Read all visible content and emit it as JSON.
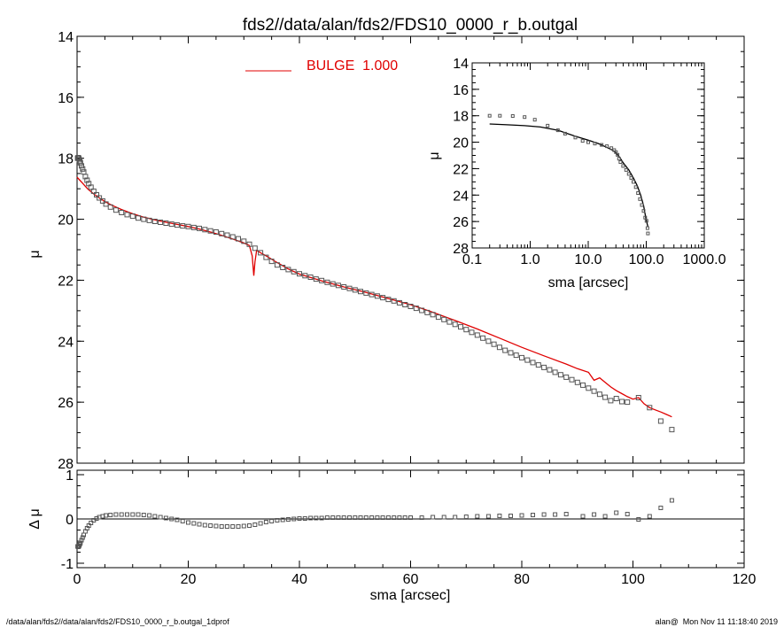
{
  "title": "fds2//data/alan/fds2/FDS10_0000_r_b.outgal",
  "footer_left": "/data/alan/fds2//data/alan/fds2/FDS10_0000_r_b.outgal_1dprof",
  "footer_right": "alan@  Mon Nov 11 11:18:40 2019",
  "colors": {
    "model": "#e00000",
    "data": "#555555",
    "axis": "#000000"
  },
  "chart_data": [
    {
      "id": "main",
      "type": "scatter",
      "ylabel": "μ",
      "xlim": [
        0,
        120
      ],
      "ylim": [
        28,
        14
      ],
      "y_inverted": true,
      "xticks": [
        0,
        20,
        40,
        60,
        80,
        100,
        120
      ],
      "yticks": [
        14,
        16,
        18,
        20,
        22,
        24,
        26,
        28
      ],
      "legend": {
        "label": "BULGE  1.000",
        "placement": "top-center"
      },
      "series": [
        {
          "name": "BULGE  1.000",
          "kind": "line",
          "x": [
            0,
            0.5,
            1,
            1.5,
            2,
            3,
            4,
            5,
            6,
            8,
            10,
            12,
            14,
            16,
            18,
            20,
            22,
            24,
            26,
            28,
            30,
            31,
            31.5,
            31.8,
            32,
            32.3,
            33,
            34,
            36,
            38,
            40,
            44,
            48,
            52,
            56,
            60,
            64,
            68,
            72,
            76,
            80,
            84,
            88,
            90,
            92,
            93,
            94,
            95,
            96,
            97,
            98,
            99,
            100,
            101,
            102,
            103,
            104,
            105,
            106,
            107
          ],
          "y": [
            18.62,
            18.72,
            18.82,
            18.92,
            19.02,
            19.17,
            19.3,
            19.42,
            19.52,
            19.68,
            19.82,
            19.93,
            20.02,
            20.1,
            20.17,
            20.24,
            20.32,
            20.42,
            20.53,
            20.65,
            20.78,
            20.86,
            21.2,
            21.85,
            21.4,
            21.02,
            21.1,
            21.2,
            21.42,
            21.63,
            21.8,
            22.02,
            22.22,
            22.4,
            22.6,
            22.8,
            23.05,
            23.32,
            23.6,
            23.9,
            24.2,
            24.48,
            24.75,
            24.9,
            25.02,
            25.28,
            25.2,
            25.35,
            25.5,
            25.62,
            25.72,
            25.82,
            25.9,
            25.85,
            26.05,
            26.18,
            26.25,
            26.32,
            26.4,
            26.48
          ]
        },
        {
          "name": "",
          "kind": "markers",
          "x": [
            0.1,
            0.2,
            0.3,
            0.4,
            0.5,
            0.6,
            0.8,
            1,
            1.2,
            1.5,
            1.8,
            2.1,
            2.5,
            3,
            3.5,
            4,
            4.6,
            5.2,
            6,
            7,
            8,
            9,
            10,
            11,
            12,
            13,
            14,
            15,
            16,
            17,
            18,
            19,
            20,
            21,
            22,
            23,
            24,
            25,
            26,
            27,
            28,
            29,
            30,
            31,
            32,
            33,
            34,
            35,
            36,
            37,
            38,
            39,
            40,
            41,
            42,
            43,
            44,
            45,
            46,
            47,
            48,
            49,
            50,
            51,
            52,
            53,
            54,
            55,
            56,
            57,
            58,
            59,
            60,
            61,
            62,
            63,
            64,
            65,
            66,
            67,
            68,
            69,
            70,
            71,
            72,
            73,
            74,
            75,
            76,
            77,
            78,
            79,
            80,
            81,
            82,
            83,
            84,
            85,
            86,
            87,
            88,
            89,
            90,
            91,
            92,
            93,
            94,
            95,
            96,
            97,
            98,
            99,
            101,
            103,
            105,
            107
          ],
          "y": [
            18.0,
            17.98,
            18.0,
            18.05,
            18.1,
            18.15,
            18.25,
            18.35,
            18.45,
            18.6,
            18.72,
            18.83,
            18.95,
            19.08,
            19.2,
            19.3,
            19.4,
            19.5,
            19.6,
            19.7,
            19.78,
            19.85,
            19.9,
            19.96,
            20.0,
            20.04,
            20.07,
            20.1,
            20.13,
            20.16,
            20.19,
            20.22,
            20.24,
            20.27,
            20.3,
            20.34,
            20.38,
            20.42,
            20.47,
            20.52,
            20.58,
            20.64,
            20.72,
            20.82,
            20.95,
            21.1,
            21.25,
            21.38,
            21.5,
            21.58,
            21.65,
            21.72,
            21.79,
            21.85,
            21.9,
            21.96,
            22.01,
            22.07,
            22.12,
            22.17,
            22.22,
            22.27,
            22.32,
            22.37,
            22.42,
            22.47,
            22.52,
            22.57,
            22.63,
            22.68,
            22.74,
            22.8,
            22.86,
            22.92,
            22.99,
            23.06,
            23.13,
            23.21,
            23.29,
            23.37,
            23.45,
            23.53,
            23.62,
            23.71,
            23.8,
            23.9,
            24.0,
            24.1,
            24.2,
            24.3,
            24.38,
            24.46,
            24.54,
            24.62,
            24.7,
            24.78,
            24.86,
            24.94,
            25.02,
            25.1,
            25.18,
            25.26,
            25.35,
            25.44,
            25.54,
            25.64,
            25.74,
            25.84,
            25.95,
            25.88,
            25.98,
            26.0,
            25.85,
            26.18,
            26.62,
            26.9
          ]
        }
      ]
    },
    {
      "id": "inset",
      "type": "scatter",
      "xlabel": "sma [arcsec]",
      "ylabel": "μ",
      "xscale": "log",
      "xlim": [
        0.1,
        1000
      ],
      "ylim": [
        28,
        14
      ],
      "y_inverted": true,
      "xticks": [
        0.1,
        1,
        10,
        100,
        1000
      ],
      "xtick_labels": [
        "0.1",
        "1.0",
        "10.0",
        "100.0",
        "1000.0"
      ],
      "yticks": [
        14,
        16,
        18,
        20,
        22,
        24,
        26,
        28
      ],
      "series": [
        {
          "name": "",
          "kind": "line",
          "x": [
            0.2,
            0.4,
            0.8,
            1.5,
            3,
            6,
            10,
            15,
            20,
            25,
            30,
            35,
            40,
            50,
            60,
            70,
            80,
            90,
            100,
            107
          ],
          "y": [
            18.62,
            18.68,
            18.75,
            18.85,
            19.1,
            19.55,
            19.85,
            20.1,
            20.35,
            20.55,
            20.8,
            21.15,
            21.55,
            22.1,
            22.7,
            23.3,
            24.0,
            24.8,
            25.9,
            26.4
          ]
        },
        {
          "name": "",
          "kind": "markers",
          "x": [
            0.2,
            0.3,
            0.5,
            0.8,
            1.2,
            2,
            3,
            4,
            6,
            8,
            10,
            13,
            17,
            21,
            25,
            28,
            30,
            32,
            34,
            36,
            40,
            45,
            50,
            55,
            60,
            66,
            72,
            78,
            84,
            90,
            96,
            101,
            105,
            107
          ],
          "y": [
            18.0,
            18.0,
            18.02,
            18.1,
            18.3,
            18.75,
            19.1,
            19.35,
            19.65,
            19.9,
            20.0,
            20.1,
            20.2,
            20.3,
            20.45,
            20.6,
            20.75,
            20.95,
            21.25,
            21.5,
            21.8,
            22.1,
            22.4,
            22.7,
            23.0,
            23.4,
            23.85,
            24.3,
            24.75,
            25.2,
            25.7,
            25.95,
            26.5,
            26.9
          ]
        }
      ]
    },
    {
      "id": "residual",
      "type": "scatter",
      "xlabel": "sma [arcsec]",
      "ylabel": "Δ μ",
      "xlim": [
        0,
        120
      ],
      "ylim": [
        -1.1,
        1.1
      ],
      "xticks": [
        0,
        20,
        40,
        60,
        80,
        100,
        120
      ],
      "yticks": [
        -1,
        0,
        1
      ],
      "zero_line": true,
      "series": [
        {
          "name": "",
          "kind": "markers",
          "x": [
            0.1,
            0.2,
            0.3,
            0.4,
            0.5,
            0.6,
            0.8,
            1,
            1.2,
            1.5,
            1.8,
            2.1,
            2.5,
            3,
            3.5,
            4,
            4.6,
            5.2,
            6,
            7,
            8,
            9,
            10,
            11,
            12,
            13,
            14,
            15,
            16,
            17,
            18,
            19,
            20,
            21,
            22,
            23,
            24,
            25,
            26,
            27,
            28,
            29,
            30,
            31,
            32,
            33,
            34,
            35,
            36,
            37,
            38,
            39,
            40,
            41,
            42,
            43,
            44,
            45,
            46,
            47,
            48,
            49,
            50,
            51,
            52,
            53,
            54,
            55,
            56,
            57,
            58,
            59,
            60,
            62,
            64,
            66,
            68,
            70,
            72,
            74,
            76,
            78,
            80,
            82,
            84,
            86,
            88,
            91,
            93,
            95,
            97,
            99,
            101,
            103,
            105,
            107
          ],
          "y": [
            -0.62,
            -0.63,
            -0.62,
            -0.6,
            -0.57,
            -0.54,
            -0.48,
            -0.42,
            -0.36,
            -0.28,
            -0.21,
            -0.15,
            -0.09,
            -0.03,
            0.01,
            0.04,
            0.06,
            0.08,
            0.09,
            0.1,
            0.1,
            0.1,
            0.1,
            0.1,
            0.09,
            0.08,
            0.06,
            0.04,
            0.02,
            0.0,
            -0.02,
            -0.05,
            -0.08,
            -0.1,
            -0.12,
            -0.14,
            -0.15,
            -0.16,
            -0.17,
            -0.17,
            -0.17,
            -0.17,
            -0.16,
            -0.15,
            -0.13,
            -0.1,
            -0.07,
            -0.05,
            -0.03,
            -0.02,
            -0.01,
            0.0,
            0.01,
            0.01,
            0.02,
            0.02,
            0.02,
            0.03,
            0.03,
            0.03,
            0.03,
            0.03,
            0.03,
            0.03,
            0.03,
            0.03,
            0.03,
            0.03,
            0.03,
            0.03,
            0.03,
            0.03,
            0.03,
            0.03,
            0.04,
            0.04,
            0.04,
            0.05,
            0.06,
            0.06,
            0.07,
            0.07,
            0.08,
            0.09,
            0.1,
            0.1,
            0.11,
            0.06,
            0.1,
            0.06,
            0.14,
            0.11,
            -0.01,
            0.06,
            0.25,
            0.42
          ]
        }
      ]
    }
  ]
}
